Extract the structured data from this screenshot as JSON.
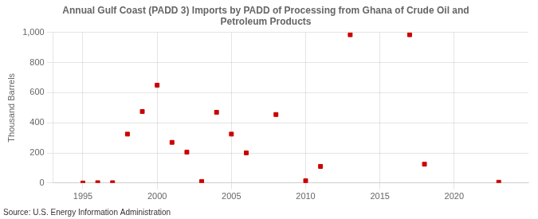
{
  "chart_data": {
    "type": "scatter",
    "title": "Annual Gulf Coast (PADD 3) Imports by PADD of Processing from Ghana of Crude Oil and\nPetroleum Products",
    "ylabel": "Thousand Barrels",
    "source": "Source: U.S. Energy Information Administration",
    "x": [
      1995,
      1996,
      1997,
      1998,
      1999,
      2000,
      2001,
      2002,
      2003,
      2004,
      2005,
      2006,
      2008,
      2010,
      2011,
      2013,
      2017,
      2018,
      2023
    ],
    "values": [
      0,
      2,
      2,
      325,
      475,
      650,
      270,
      205,
      10,
      470,
      325,
      200,
      455,
      15,
      110,
      985,
      985,
      125,
      5
    ],
    "color": "#cc0000",
    "marker": "square",
    "xlim": [
      1993,
      2025
    ],
    "ylim": [
      0,
      1000
    ],
    "xticks": [
      1995,
      2000,
      2005,
      2010,
      2015,
      2020
    ],
    "yticks": [
      0,
      200,
      400,
      600,
      800,
      {
        "value": 1000,
        "label": "1,000"
      }
    ],
    "grid": true
  }
}
